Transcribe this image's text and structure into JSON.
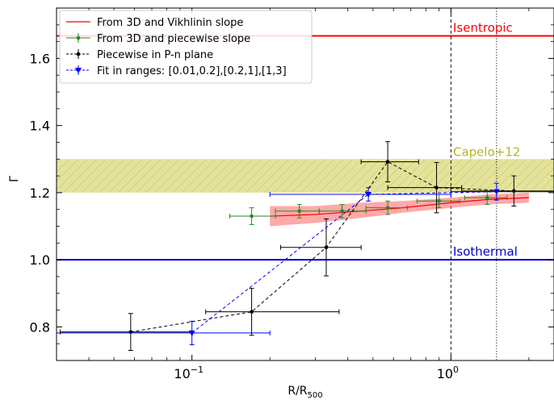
{
  "chart_data": {
    "type": "scatter",
    "xlabel": "R/R",
    "xlabel_sub": "500",
    "ylabel": "Γ",
    "xscale": "log",
    "xlim": [
      0.03,
      2.5
    ],
    "ylim": [
      0.7,
      1.75
    ],
    "x_ticks": [
      {
        "value": 0.1,
        "base": "10",
        "exp": "−1"
      },
      {
        "value": 1,
        "base": "10",
        "exp": "0"
      }
    ],
    "y_ticks": [
      {
        "value": 0.8,
        "label": "0.8"
      },
      {
        "value": 1.0,
        "label": "1.0"
      },
      {
        "value": 1.2,
        "label": "1.2"
      },
      {
        "value": 1.4,
        "label": "1.4"
      },
      {
        "value": 1.6,
        "label": "1.6"
      }
    ],
    "legend_position": "top-left",
    "hlines": [
      {
        "y": 1.667,
        "color": "#ff0000",
        "label": "Isentropic"
      },
      {
        "y": 1.0,
        "color": "#0000cc",
        "label": "Isothermal"
      }
    ],
    "vlines": [
      {
        "x": 1.0,
        "style": "dashed"
      },
      {
        "x": 1.5,
        "style": "dotted"
      }
    ],
    "band": {
      "y_low": 1.2,
      "y_high": 1.3,
      "color": "#cccc33",
      "label": "Capelo+12"
    },
    "series": [
      {
        "name": "From 3D and Vikhlinin slope",
        "kind": "line_band",
        "color": "#ff0000",
        "x": [
          0.2,
          0.3,
          0.45,
          0.65,
          1.0,
          1.4,
          2.0
        ],
        "y": [
          1.13,
          1.135,
          1.145,
          1.155,
          1.17,
          1.18,
          1.185
        ],
        "y_low": [
          1.1,
          1.11,
          1.125,
          1.14,
          1.155,
          1.165,
          1.17
        ],
        "y_high": [
          1.16,
          1.16,
          1.17,
          1.175,
          1.185,
          1.195,
          1.2
        ]
      },
      {
        "name": "From 3D and piecewise slope",
        "kind": "errorbar",
        "color": "#228b22",
        "x": [
          0.17,
          0.26,
          0.38,
          0.57,
          0.9,
          1.38
        ],
        "y": [
          1.13,
          1.145,
          1.145,
          1.155,
          1.175,
          1.185
        ],
        "xerr_low": [
          0.14,
          0.21,
          0.31,
          0.47,
          0.74,
          1.13
        ],
        "xerr_high": [
          0.21,
          0.31,
          0.47,
          0.68,
          1.08,
          1.65
        ],
        "yerr": [
          0.025,
          0.02,
          0.02,
          0.02,
          0.02,
          0.02
        ]
      },
      {
        "name": "Piecewise in P-n plane",
        "kind": "errorbar",
        "color": "#000000",
        "dashed": true,
        "x": [
          0.058,
          0.17,
          0.33,
          0.57,
          0.88,
          1.75
        ],
        "y": [
          0.785,
          0.845,
          1.037,
          1.292,
          1.215,
          1.205
        ],
        "xerr_low": [
          0.031,
          0.113,
          0.22,
          0.45,
          0.57,
          1.1
        ],
        "xerr_high": [
          0.1,
          0.37,
          0.45,
          0.75,
          1.1,
          2.5
        ],
        "yerr": [
          0.055,
          0.07,
          0.085,
          0.06,
          0.075,
          0.045
        ]
      },
      {
        "name": "Fit in ranges: [0.01,0.2],[0.2,1],[1,3]",
        "kind": "errorbar",
        "color": "#0000ff",
        "dashed": true,
        "marker": "triangle-down",
        "x": [
          0.1,
          0.48,
          1.5
        ],
        "y": [
          0.782,
          1.195,
          1.203
        ],
        "xerr_low": [
          0.03,
          0.2,
          1.0
        ],
        "xerr_high": [
          0.2,
          1.0,
          2.5
        ],
        "yerr": [
          0.035,
          0.02,
          0.025
        ]
      }
    ]
  }
}
